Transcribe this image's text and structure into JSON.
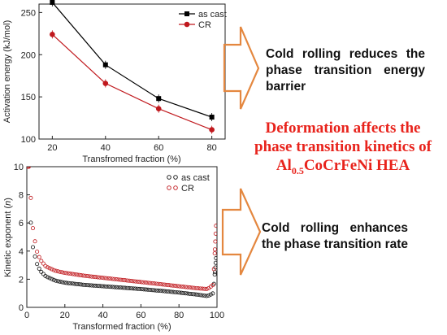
{
  "chart_data": [
    {
      "type": "line",
      "xlabel": "Transfromed fraction (%)",
      "ylabel": "Activation energy (kJ/mol)",
      "x": [
        20,
        40,
        60,
        80
      ],
      "xlim": [
        15,
        85
      ],
      "ylim": [
        100,
        260
      ],
      "xticks": [
        20,
        40,
        60,
        80
      ],
      "yticks": [
        100,
        150,
        200,
        250
      ],
      "grid": false,
      "legend": "top-right",
      "series": [
        {
          "name": "as cast",
          "values": [
            262,
            188,
            148,
            126
          ],
          "color": "#000000",
          "marker": "square"
        },
        {
          "name": "CR",
          "values": [
            224,
            166,
            136,
            111
          ],
          "color": "#c0181d",
          "marker": "circle"
        }
      ]
    },
    {
      "type": "scatter",
      "xlabel": "Transformed fraction (%)",
      "ylabel": "Kinetic exponent (n)",
      "xlim": [
        0,
        100
      ],
      "ylim": [
        0,
        10
      ],
      "xticks": [
        0,
        20,
        40,
        60,
        80,
        100
      ],
      "yticks": [
        0,
        2,
        4,
        6,
        8,
        10
      ],
      "grid": false,
      "legend": "top-right",
      "series": [
        {
          "name": "as cast",
          "color": "#111111",
          "marker": "open-circle",
          "x": [
            1,
            2,
            3,
            5,
            7,
            10,
            15,
            20,
            30,
            40,
            50,
            60,
            70,
            80,
            90,
            95,
            98,
            99.5
          ],
          "y": [
            10,
            6.2,
            4.4,
            3.2,
            2.6,
            2.2,
            1.9,
            1.75,
            1.6,
            1.5,
            1.4,
            1.3,
            1.18,
            1.05,
            0.9,
            0.8,
            1.0,
            3.5
          ]
        },
        {
          "name": "CR",
          "color": "#c0181d",
          "marker": "open-circle",
          "x": [
            1,
            2,
            3,
            5,
            7,
            10,
            15,
            20,
            30,
            40,
            50,
            60,
            70,
            80,
            90,
            95,
            98,
            99.5
          ],
          "y": [
            10,
            8.0,
            5.8,
            4.1,
            3.4,
            2.9,
            2.6,
            2.45,
            2.25,
            2.1,
            1.95,
            1.8,
            1.65,
            1.5,
            1.35,
            1.3,
            1.6,
            5.8
          ]
        }
      ]
    }
  ],
  "text": {
    "statement_top": "Cold rolling reduces the phase transition energy barrier",
    "headline_line1": "Deformation affects the",
    "headline_line2": "phase transition kinetics of",
    "headline_alloy_base": "Al",
    "headline_alloy_sub": "0.5",
    "headline_alloy_rest": "CoCrFeNi HEA",
    "statement_bottom": "Cold rolling enhances the phase transition rate"
  },
  "colors": {
    "arrow_stroke": "#e4873f",
    "headline": "#e8231c",
    "series_as_cast": "#000000",
    "series_cr": "#c0181d"
  }
}
